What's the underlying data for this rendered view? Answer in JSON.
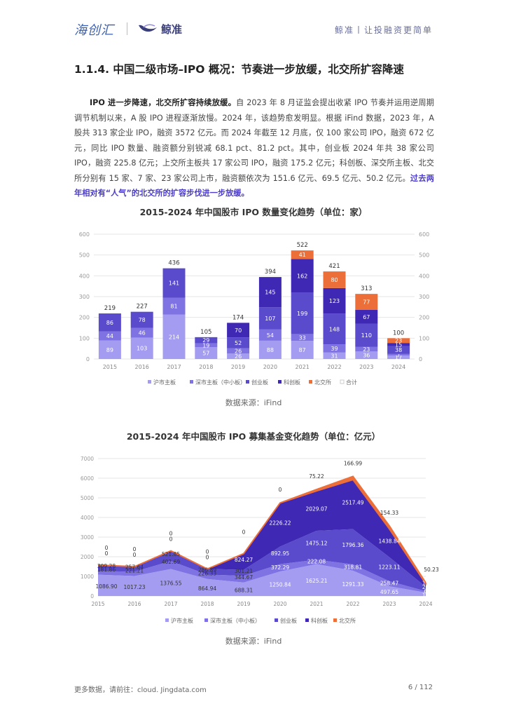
{
  "header": {
    "logo_left": "海创汇",
    "logo_right": "鲸准",
    "slogan": "鲸准丨让投融资更简单"
  },
  "section": {
    "title": "1.1.4.  中国二级市场–IPO 概况：节奏进一步放缓，北交所扩容降速"
  },
  "paragraph": {
    "lead": "IPO 进一步降速，北交所扩容持续放缓。",
    "body": "自 2023 年 8 月证监会提出收紧 IPO 节奏并运用逆周期调节机制以来，A 股 IPO 进程逐渐放慢。2024 年，该趋势愈发明显。根据 iFind 数据，2023 年，A 股共 313 家企业 IPO，融资 3572 亿元。而 2024 年截至 12 月底，仅 100 家公司 IPO，融资 672 亿元，同比 IPO 数量、融资额分别锐减 68.1 pct、81.2 pct。其中，创业板 2024 年共 38 家公司 IPO，融资 225.8 亿元；上交所主板共 17 家公司 IPO，融资 175.2 亿元；科创板、深交所主板、北交所分别有 15 家、7 家、23 家公司上市，融资额依次为 151.6 亿元、69.5 亿元、50.2 亿元。",
    "highlight": "过去两年相对有“人气”的北交所的扩容步伐进一步放缓。"
  },
  "colors": {
    "sh_main": "#a49cf0",
    "sz_main": "#7f72e2",
    "chinext": "#5a4bcc",
    "star": "#3e28b4",
    "bse": "#ec6f3a",
    "total": "#ffffff"
  },
  "legend": [
    "沪市主板",
    "深市主板（中小板）",
    "创业板",
    "科创板",
    "北交所",
    "合计"
  ],
  "legend2": [
    "沪市主板",
    "深市主板（中小板）",
    "创业板",
    "科创板",
    "北交所"
  ],
  "chart1": {
    "title": "2015-2024 年中国股市 IPO 数量变化趋势（单位：家）",
    "source": "数据来源：iFind",
    "chart_data": {
      "type": "bar",
      "categories": [
        "2015",
        "2016",
        "2017",
        "2018",
        "2019",
        "2020",
        "2021",
        "2022",
        "2023",
        "2024"
      ],
      "series": [
        {
          "name": "沪市主板",
          "values": [
            89,
            103,
            214,
            57,
            26,
            88,
            87,
            31,
            36,
            17
          ]
        },
        {
          "name": "深市主板（中小板）",
          "values": [
            44,
            46,
            81,
            19,
            26,
            54,
            33,
            39,
            23,
            7
          ]
        },
        {
          "name": "创业板",
          "values": [
            86,
            78,
            141,
            29,
            52,
            107,
            199,
            148,
            110,
            38
          ]
        },
        {
          "name": "科创板",
          "values": [
            0,
            0,
            0,
            0,
            70,
            145,
            162,
            123,
            67,
            15
          ]
        },
        {
          "name": "北交所",
          "values": [
            0,
            0,
            0,
            0,
            0,
            0,
            41,
            80,
            77,
            23
          ]
        },
        {
          "name": "合计",
          "values": [
            219,
            227,
            436,
            105,
            174,
            394,
            522,
            421,
            313,
            100
          ]
        }
      ],
      "ylim": [
        0,
        600
      ],
      "yticks": [
        0,
        100,
        200,
        300,
        400,
        500,
        600
      ],
      "grid": true,
      "legend_position": "bottom"
    }
  },
  "chart2": {
    "title": "2015-2024 年中国股市 IPO 募集基金变化趋势（单位：亿元）",
    "source": "数据来源：iFind",
    "chart_data": {
      "type": "area",
      "categories": [
        "2015",
        "2016",
        "2017",
        "2018",
        "2019",
        "2020",
        "2021",
        "2022",
        "2023",
        "2024"
      ],
      "series": [
        {
          "name": "沪市主板",
          "values": [
            1086.9,
            1017.23,
            1376.55,
            864.94,
            688.31,
            1250.84,
            1625.21,
            1291.33,
            497.65,
            175.2
          ]
        },
        {
          "name": "深市主板（中小板）",
          "values": [
            181.86,
            221.21,
            402.69,
            226.33,
            344.67,
            372.29,
            222.08,
            318.81,
            258.47,
            69.53
          ]
        },
        {
          "name": "创业板",
          "values": [
            309.28,
            257.64,
            521.85,
            286.89,
            301.21,
            892.95,
            1475.12,
            1796.36,
            1223.11,
            225.81
          ]
        },
        {
          "name": "科创板",
          "values": [
            0,
            0,
            0,
            0,
            824.27,
            2226.22,
            2029.07,
            2517.49,
            1438.84,
            151.58
          ]
        },
        {
          "name": "北交所",
          "values": [
            0,
            0,
            0,
            0,
            0,
            0,
            75.22,
            166.99,
            154.33,
            50.23
          ]
        }
      ],
      "labels_shown": [
        [
          "309.28",
          "181.86",
          "1086.90",
          "0",
          "0"
        ],
        [
          "257.64",
          "221.21",
          "1017.23",
          "0",
          "0"
        ],
        [
          "521.85",
          "402.69",
          "1376.55",
          "0",
          "0"
        ],
        [
          "286.89",
          "226.33",
          "864.94",
          "0",
          "0"
        ],
        [
          "824.27",
          "301.21",
          "344.67",
          "688.31",
          "0"
        ],
        [
          "2226.22",
          "892.95",
          "372.29",
          "1250.84",
          "0"
        ],
        [
          "2029.07",
          "1475.12",
          "222.08",
          "1625.21",
          "75.22"
        ],
        [
          "2517.49",
          "1796.36",
          "318.81",
          "1291.33",
          "166.99"
        ],
        [
          "1438.84",
          "1223.11",
          "258.47",
          "497.65",
          "154.33"
        ],
        [
          "151.58",
          "225.81",
          "69.53",
          "175.20",
          "50.23"
        ]
      ],
      "ylim": [
        0,
        7000
      ],
      "yticks": [
        0,
        1000,
        2000,
        3000,
        4000,
        5000,
        6000,
        7000
      ],
      "grid": true,
      "legend_position": "bottom"
    }
  },
  "footer": {
    "left": "更多数据，请前往：cloud. Jingdata.com",
    "page": "6  /  112"
  }
}
